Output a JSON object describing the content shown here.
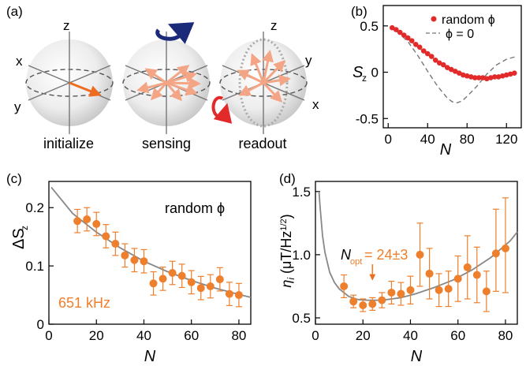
{
  "figure": {
    "panel_a": {
      "label": "(a)",
      "spheres": [
        {
          "caption": "initialize",
          "axes": {
            "z": "z",
            "x": "x",
            "y": "y"
          }
        },
        {
          "caption": "sensing"
        },
        {
          "caption": "readout",
          "axes": {
            "z": "z",
            "x": "x",
            "y": "y"
          }
        }
      ],
      "colors": {
        "vector": "#ee7f2d",
        "fan": "#f4a585",
        "rot_blue": "#1c2a7a",
        "rot_red": "#e32a2a"
      }
    },
    "panel_b": {
      "label": "(b)",
      "legend": [
        "random ϕ",
        "ϕ = 0"
      ]
    },
    "panel_c": {
      "label": "(c)",
      "annot_random": "random ϕ",
      "annot_freq": "651 kHz"
    },
    "panel_d": {
      "label": "(d)",
      "nopt_text": "= 24±3"
    }
  },
  "chart_data": [
    {
      "panel": "b",
      "type": "scatter",
      "xlabel": "N",
      "ylabel": "S_z",
      "xlim": [
        -5,
        135
      ],
      "ylim": [
        -0.6,
        0.72
      ],
      "xticks": [
        0,
        40,
        80,
        120
      ],
      "yticks": [
        -0.5,
        0,
        0.5
      ],
      "tick_labels_x": [
        "0",
        "40",
        "80",
        "120"
      ],
      "tick_labels_y": [
        "-0.5",
        "0",
        "0.5"
      ],
      "series": [
        {
          "name": "random ϕ",
          "style": "markers",
          "color": "#e32a2a",
          "x": [
            4,
            8,
            12,
            16,
            20,
            24,
            28,
            32,
            36,
            40,
            44,
            48,
            52,
            56,
            60,
            64,
            68,
            72,
            76,
            80,
            84,
            88,
            92,
            96,
            100,
            104,
            108,
            112,
            116,
            120,
            124,
            128
          ],
          "y": [
            0.48,
            0.46,
            0.43,
            0.4,
            0.37,
            0.34,
            0.3,
            0.27,
            0.23,
            0.2,
            0.17,
            0.13,
            0.1,
            0.08,
            0.05,
            0.03,
            0.01,
            -0.01,
            -0.03,
            -0.04,
            -0.05,
            -0.06,
            -0.06,
            -0.06,
            -0.07,
            -0.06,
            -0.05,
            -0.05,
            -0.04,
            -0.03,
            -0.02,
            -0.01
          ]
        },
        {
          "name": "fit",
          "style": "line",
          "color": "#999999",
          "x": [
            2,
            10,
            20,
            30,
            40,
            50,
            60,
            70,
            80,
            90,
            100,
            110,
            120,
            130
          ],
          "y": [
            0.49,
            0.44,
            0.36,
            0.27,
            0.19,
            0.12,
            0.06,
            0.01,
            -0.03,
            -0.06,
            -0.06,
            -0.05,
            -0.03,
            -0.01
          ]
        },
        {
          "name": "ϕ = 0",
          "style": "dashed",
          "color": "#777777",
          "x": [
            2,
            10,
            20,
            30,
            40,
            50,
            60,
            65,
            70,
            75,
            80,
            90,
            100,
            110,
            120,
            130
          ],
          "y": [
            0.49,
            0.43,
            0.33,
            0.18,
            0.01,
            -0.15,
            -0.28,
            -0.32,
            -0.33,
            -0.31,
            -0.26,
            -0.15,
            -0.02,
            0.08,
            0.14,
            0.17
          ]
        }
      ]
    },
    {
      "panel": "c",
      "type": "scatter",
      "xlabel": "N",
      "ylabel": "ΔS_z",
      "xlim": [
        0,
        85
      ],
      "ylim": [
        0,
        0.245
      ],
      "xticks": [
        0,
        20,
        40,
        60,
        80
      ],
      "yticks": [
        0,
        0.1,
        0.2
      ],
      "tick_labels_x": [
        "0",
        "20",
        "40",
        "60",
        "80"
      ],
      "tick_labels_y": [
        "0",
        "0.1",
        "0.2"
      ],
      "series": [
        {
          "name": "data",
          "style": "errorbar",
          "color": "#ee7f2d",
          "x": [
            12,
            16,
            20,
            24,
            28,
            32,
            36,
            40,
            44,
            48,
            52,
            56,
            60,
            64,
            68,
            72,
            76,
            80
          ],
          "y": [
            0.177,
            0.18,
            0.172,
            0.151,
            0.138,
            0.118,
            0.11,
            0.108,
            0.07,
            0.078,
            0.088,
            0.083,
            0.072,
            0.062,
            0.065,
            0.077,
            0.052,
            0.05
          ],
          "err": [
            0.02,
            0.02,
            0.02,
            0.02,
            0.02,
            0.02,
            0.02,
            0.02,
            0.02,
            0.02,
            0.02,
            0.02,
            0.02,
            0.02,
            0.02,
            0.02,
            0.02,
            0.02
          ]
        },
        {
          "name": "fit",
          "style": "line",
          "color": "#888888",
          "x": [
            1,
            10,
            20,
            30,
            40,
            50,
            60,
            70,
            80,
            85
          ],
          "y": [
            0.235,
            0.19,
            0.158,
            0.131,
            0.108,
            0.09,
            0.075,
            0.062,
            0.051,
            0.046
          ]
        }
      ]
    },
    {
      "panel": "d",
      "type": "scatter",
      "xlabel": "N",
      "ylabel": "η_i (μT/Hz^1/2)",
      "xlim": [
        0,
        85
      ],
      "ylim": [
        0.45,
        1.58
      ],
      "xticks": [
        0,
        20,
        40,
        60,
        80
      ],
      "yticks": [
        0.5,
        1.0,
        1.5
      ],
      "tick_labels_x": [
        "0",
        "20",
        "40",
        "60",
        "80"
      ],
      "tick_labels_y": [
        "0.5",
        "1.0",
        "1.5"
      ],
      "annotation": {
        "text": "N_opt = 24±3",
        "x": 24
      },
      "series": [
        {
          "name": "data",
          "style": "errorbar",
          "color": "#ee7f2d",
          "x": [
            12,
            16,
            20,
            24,
            28,
            32,
            36,
            40,
            44,
            48,
            52,
            56,
            60,
            64,
            68,
            72,
            76,
            80
          ],
          "y": [
            0.75,
            0.63,
            0.6,
            0.61,
            0.64,
            0.7,
            0.69,
            0.72,
            1.0,
            0.85,
            0.72,
            0.73,
            0.81,
            0.9,
            0.84,
            0.71,
            1.01,
            1.05
          ],
          "err_lo": [
            0.09,
            0.05,
            0.05,
            0.05,
            0.06,
            0.09,
            0.09,
            0.11,
            0.25,
            0.2,
            0.13,
            0.14,
            0.18,
            0.25,
            0.22,
            0.16,
            0.3,
            0.35
          ],
          "err_hi": [
            0.09,
            0.05,
            0.05,
            0.05,
            0.06,
            0.09,
            0.09,
            0.11,
            0.25,
            0.2,
            0.13,
            0.14,
            0.18,
            0.25,
            0.22,
            0.16,
            0.35,
            0.4
          ]
        },
        {
          "name": "fit",
          "style": "line",
          "color": "#888888",
          "x": [
            1.5,
            2,
            3,
            4,
            6,
            8,
            10,
            14,
            18,
            22,
            26,
            30,
            36,
            42,
            50,
            58,
            66,
            74,
            82,
            85
          ],
          "y": [
            1.5,
            1.37,
            1.15,
            1.02,
            0.86,
            0.78,
            0.73,
            0.67,
            0.645,
            0.64,
            0.64,
            0.645,
            0.66,
            0.69,
            0.74,
            0.8,
            0.88,
            0.98,
            1.11,
            1.18
          ]
        }
      ]
    }
  ]
}
